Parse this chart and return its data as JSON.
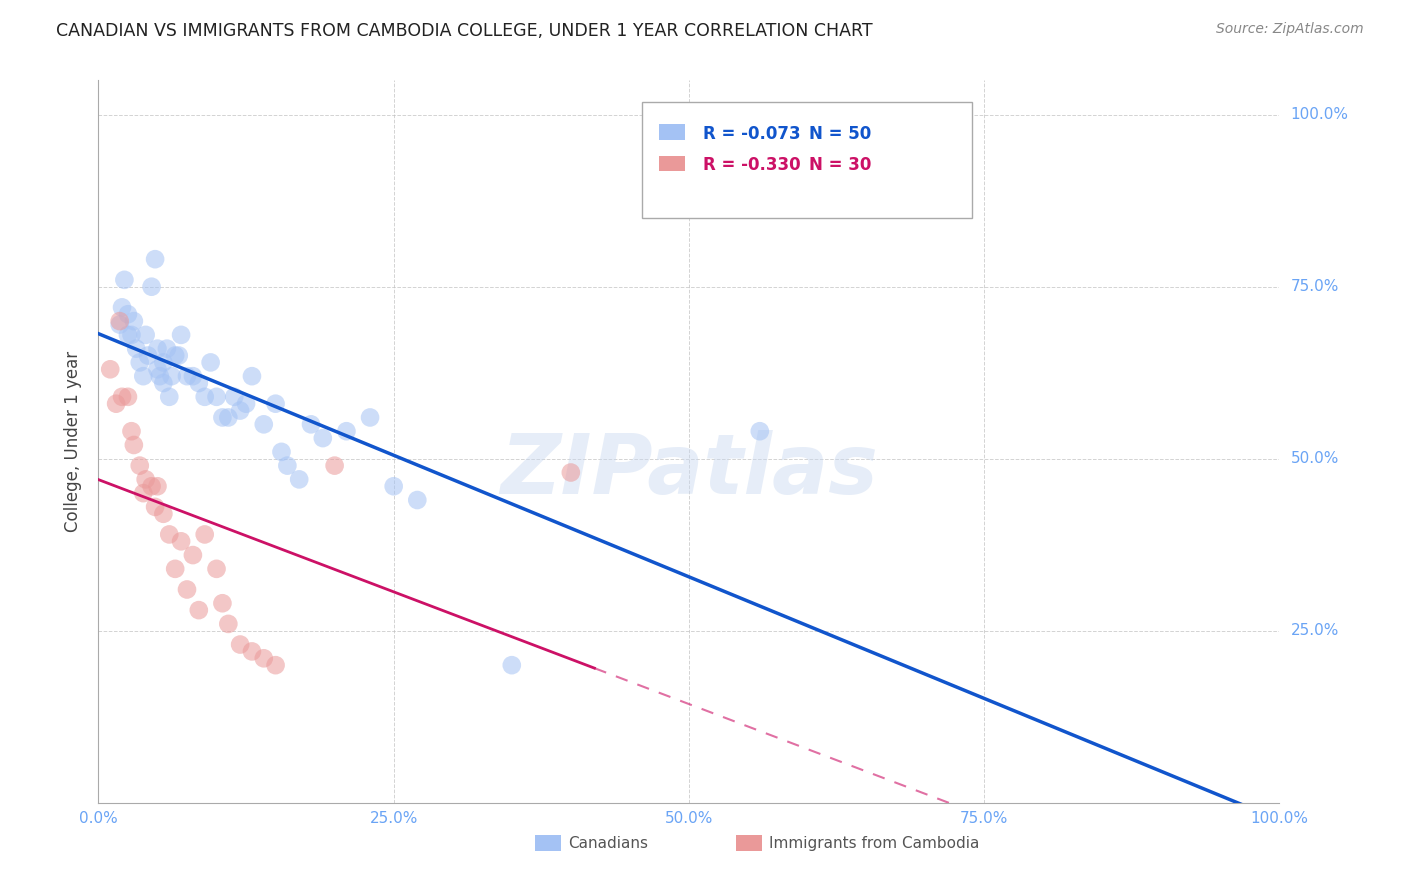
{
  "title": "CANADIAN VS IMMIGRANTS FROM CAMBODIA COLLEGE, UNDER 1 YEAR CORRELATION CHART",
  "source": "Source: ZipAtlas.com",
  "ylabel": "College, Under 1 year",
  "background_color": "#ffffff",
  "watermark": "ZIPatlas",
  "canadian_color": "#a4c2f4",
  "cambodia_color": "#ea9999",
  "canadian_line_color": "#1155cc",
  "cambodia_line_color": "#cc1166",
  "axis_label_color": "#6aa4f5",
  "grid_color": "#c0c0c0",
  "title_color": "#222222",
  "source_color": "#888888",
  "r_canadian": "R = -0.073",
  "n_canadian": "N = 50",
  "r_cambodia": "R = -0.330",
  "n_cambodia": "N = 30",
  "legend_label_canadian": "Canadians",
  "legend_label_cambodia": "Immigrants from Cambodia",
  "canadian_points_x": [
    0.018,
    0.02,
    0.022,
    0.025,
    0.025,
    0.028,
    0.03,
    0.032,
    0.035,
    0.038,
    0.04,
    0.042,
    0.045,
    0.048,
    0.05,
    0.05,
    0.052,
    0.055,
    0.055,
    0.058,
    0.06,
    0.062,
    0.065,
    0.068,
    0.07,
    0.075,
    0.08,
    0.085,
    0.09,
    0.095,
    0.1,
    0.105,
    0.11,
    0.115,
    0.12,
    0.125,
    0.13,
    0.14,
    0.15,
    0.155,
    0.16,
    0.17,
    0.18,
    0.19,
    0.21,
    0.23,
    0.25,
    0.27,
    0.35,
    0.56
  ],
  "canadian_points_y": [
    0.695,
    0.72,
    0.76,
    0.68,
    0.71,
    0.68,
    0.7,
    0.66,
    0.64,
    0.62,
    0.68,
    0.65,
    0.75,
    0.79,
    0.63,
    0.66,
    0.62,
    0.61,
    0.64,
    0.66,
    0.59,
    0.62,
    0.65,
    0.65,
    0.68,
    0.62,
    0.62,
    0.61,
    0.59,
    0.64,
    0.59,
    0.56,
    0.56,
    0.59,
    0.57,
    0.58,
    0.62,
    0.55,
    0.58,
    0.51,
    0.49,
    0.47,
    0.55,
    0.53,
    0.54,
    0.56,
    0.46,
    0.44,
    0.2,
    0.54
  ],
  "cambodia_points_x": [
    0.01,
    0.015,
    0.018,
    0.02,
    0.025,
    0.028,
    0.03,
    0.035,
    0.038,
    0.04,
    0.045,
    0.048,
    0.05,
    0.055,
    0.06,
    0.065,
    0.07,
    0.075,
    0.08,
    0.085,
    0.09,
    0.1,
    0.105,
    0.11,
    0.12,
    0.13,
    0.14,
    0.15,
    0.2,
    0.4
  ],
  "cambodia_points_y": [
    0.63,
    0.58,
    0.7,
    0.59,
    0.59,
    0.54,
    0.52,
    0.49,
    0.45,
    0.47,
    0.46,
    0.43,
    0.46,
    0.42,
    0.39,
    0.34,
    0.38,
    0.31,
    0.36,
    0.28,
    0.39,
    0.34,
    0.29,
    0.26,
    0.23,
    0.22,
    0.21,
    0.2,
    0.49,
    0.48
  ],
  "xlim": [
    0.0,
    1.0
  ],
  "ylim": [
    0.0,
    1.05
  ],
  "xtick_vals": [
    0.0,
    0.25,
    0.5,
    0.75,
    1.0
  ],
  "xtick_labels": [
    "0.0%",
    "25.0%",
    "50.0%",
    "75.0%",
    "100.0%"
  ],
  "ytick_vals": [
    0.25,
    0.5,
    0.75,
    1.0
  ],
  "ytick_labels": [
    "25.0%",
    "50.0%",
    "75.0%",
    "100.0%"
  ]
}
